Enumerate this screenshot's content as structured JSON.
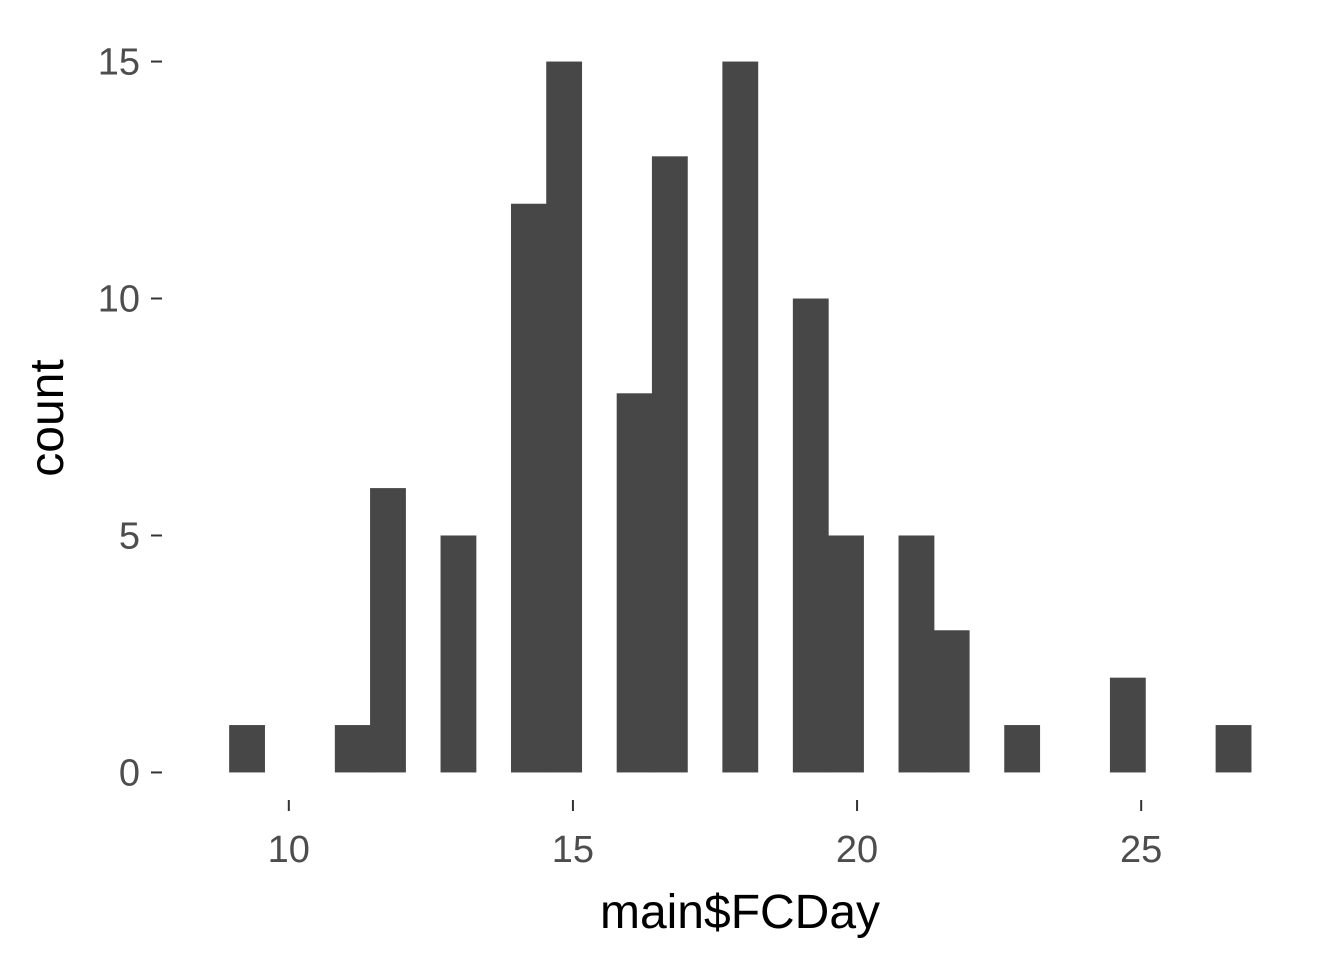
{
  "chart_data": {
    "type": "bar",
    "subtype": "histogram",
    "xlabel": "main$FCDay",
    "ylabel": "count",
    "bin_width": 0.62,
    "bins": [
      {
        "x_start": 8.95,
        "x_end": 9.57,
        "count": 1
      },
      {
        "x_start": 10.81,
        "x_end": 11.43,
        "count": 1
      },
      {
        "x_start": 11.43,
        "x_end": 12.05,
        "count": 6
      },
      {
        "x_start": 12.67,
        "x_end": 13.29,
        "count": 5
      },
      {
        "x_start": 13.91,
        "x_end": 14.53,
        "count": 12
      },
      {
        "x_start": 14.53,
        "x_end": 15.15,
        "count": 15
      },
      {
        "x_start": 15.77,
        "x_end": 16.39,
        "count": 8
      },
      {
        "x_start": 16.39,
        "x_end": 17.01,
        "count": 13
      },
      {
        "x_start": 17.63,
        "x_end": 18.25,
        "count": 15
      },
      {
        "x_start": 18.87,
        "x_end": 19.49,
        "count": 10
      },
      {
        "x_start": 19.49,
        "x_end": 20.11,
        "count": 5
      },
      {
        "x_start": 20.73,
        "x_end": 21.35,
        "count": 5
      },
      {
        "x_start": 21.35,
        "x_end": 21.97,
        "count": 3
      },
      {
        "x_start": 22.59,
        "x_end": 23.21,
        "count": 1
      },
      {
        "x_start": 24.45,
        "x_end": 25.07,
        "count": 2
      },
      {
        "x_start": 26.31,
        "x_end": 26.93,
        "count": 1
      }
    ],
    "xlim": [
      8.05,
      27.83
    ],
    "ylim": [
      -0.75,
      15.75
    ],
    "x_ticks": [
      10,
      15,
      20,
      25
    ],
    "x_tick_labels": [
      "10",
      "15",
      "20",
      "25"
    ],
    "y_ticks": [
      0,
      5,
      10,
      15
    ],
    "y_tick_labels": [
      "0",
      "5",
      "10",
      "15"
    ],
    "bar_color": "#474747",
    "background": "#ffffff",
    "grid": false,
    "legend": "none"
  }
}
